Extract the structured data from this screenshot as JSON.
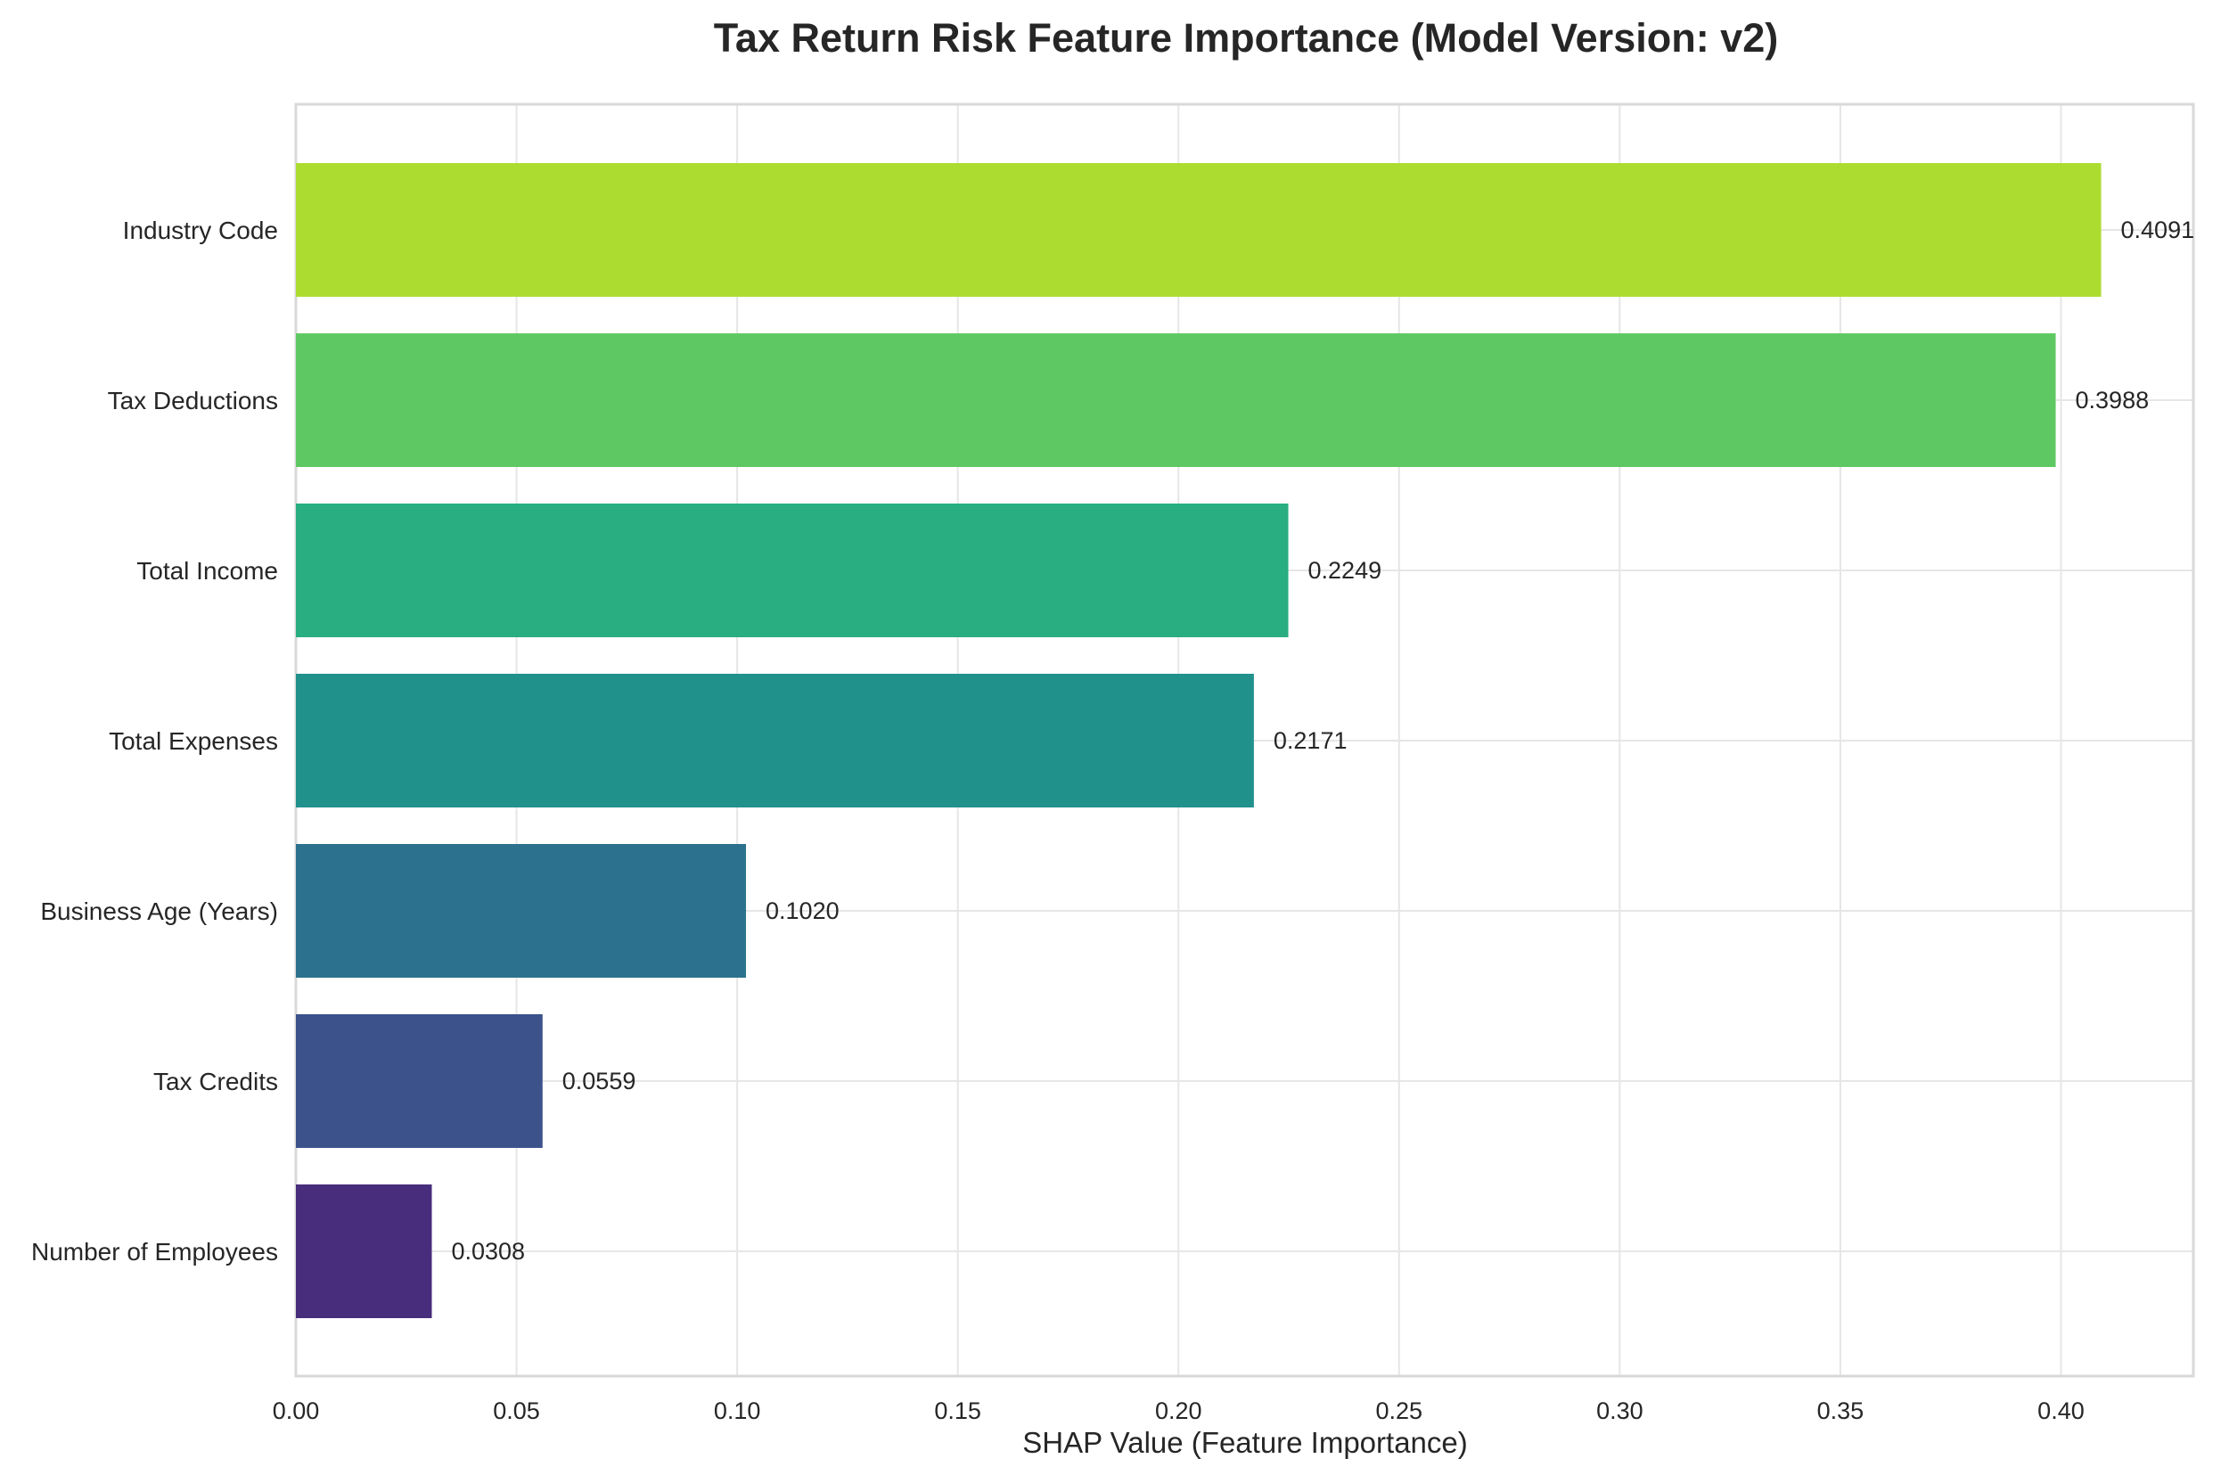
{
  "chart_data": {
    "type": "bar",
    "orientation": "horizontal",
    "title": "Tax Return Risk Feature Importance (Model Version: v2)",
    "xlabel": "SHAP Value (Feature Importance)",
    "ylabel": "",
    "xlim": [
      0,
      0.43
    ],
    "xticks": [
      0.0,
      0.05,
      0.1,
      0.15,
      0.2,
      0.25,
      0.3,
      0.35,
      0.4
    ],
    "xtick_labels": [
      "0.00",
      "0.05",
      "0.10",
      "0.15",
      "0.20",
      "0.25",
      "0.30",
      "0.35",
      "0.40"
    ],
    "grid": true,
    "legend": "none",
    "categories": [
      "Industry Code",
      "Tax Deductions",
      "Total Income",
      "Total Expenses",
      "Business Age (Years)",
      "Tax Credits",
      "Number of Employees"
    ],
    "values": [
      0.4091,
      0.3988,
      0.2249,
      0.2171,
      0.102,
      0.0559,
      0.0308
    ],
    "value_labels": [
      "0.4091",
      "0.3988",
      "0.2249",
      "0.2171",
      "0.1020",
      "0.0559",
      "0.0308"
    ],
    "colors": [
      "#addc30",
      "#5ec962",
      "#28ae80",
      "#21918c",
      "#2c728e",
      "#3b528b",
      "#472d7b"
    ],
    "grid_color": "#e6e6e6",
    "frame_color": "#d9d9d9"
  }
}
